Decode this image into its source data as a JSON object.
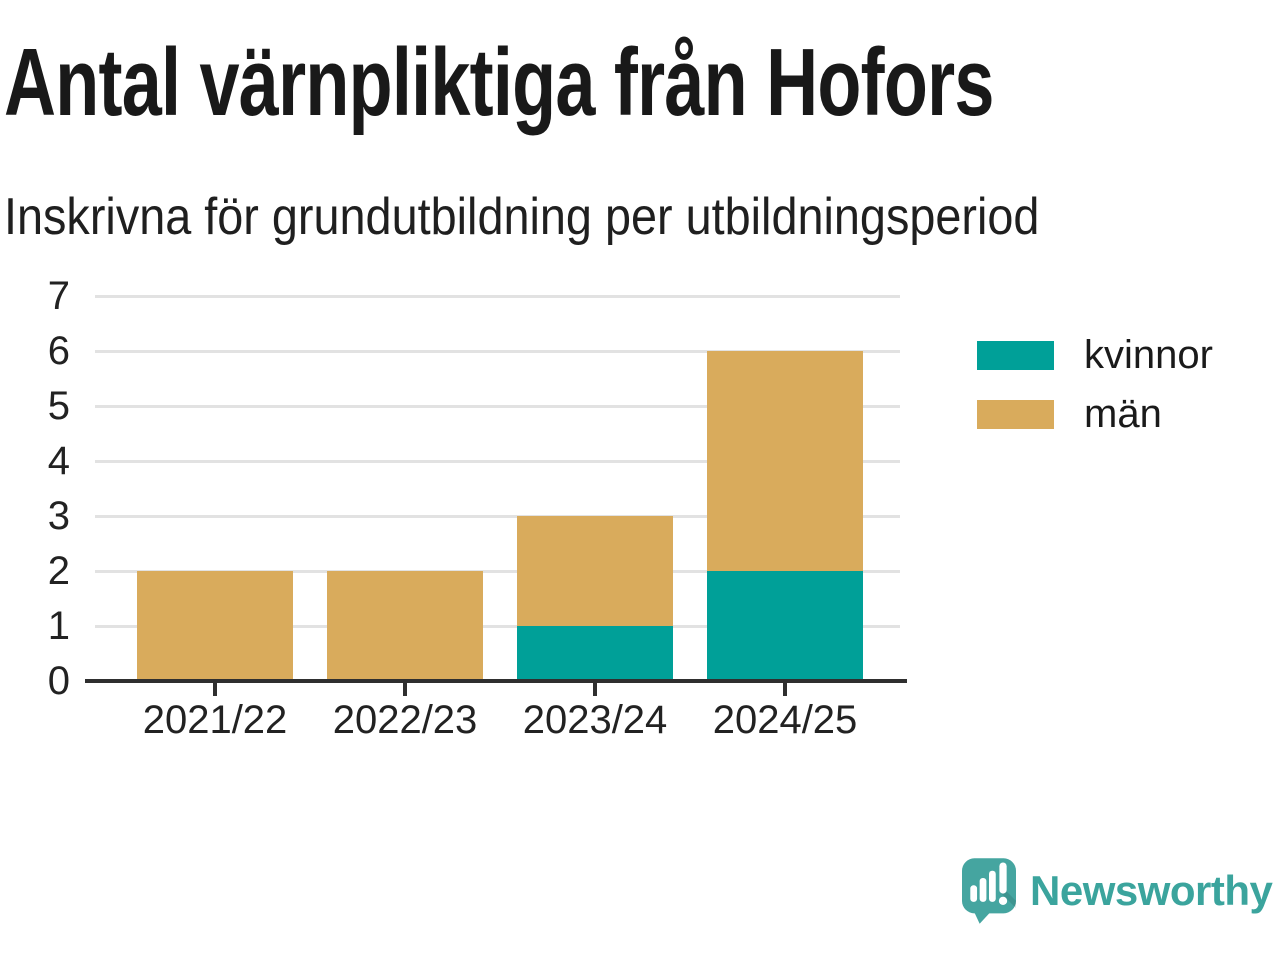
{
  "chart_data": {
    "type": "bar",
    "stacked": true,
    "title": "Antal värnpliktiga från Hofors",
    "subtitle": "Inskrivna för grundutbildning per utbildningsperiod",
    "categories": [
      "2021/22",
      "2022/23",
      "2023/24",
      "2024/25"
    ],
    "series": [
      {
        "name": "kvinnor",
        "color": "#00a098",
        "values": [
          0,
          0,
          1,
          2
        ]
      },
      {
        "name": "män",
        "color": "#d9ab5c",
        "values": [
          2,
          2,
          2,
          4
        ]
      }
    ],
    "stack_totals": [
      2,
      2,
      3,
      6
    ],
    "ylim": [
      0,
      7
    ],
    "yticks": [
      0,
      1,
      2,
      3,
      4,
      5,
      6,
      7
    ],
    "xlabel": "",
    "ylabel": "",
    "grid": "horizontal",
    "legend_position": "right"
  },
  "colors": {
    "axis": "#2f2f2f",
    "gridline": "#e2e2e2",
    "tick_text": "#222222",
    "title_text": "#191919"
  },
  "branding": {
    "logo_text": "Newsworthy",
    "logo_icon": "newsworthy-speech-bubble-bars-icon",
    "icon_color": "#45a5a0",
    "text_color": "#3ba49d"
  }
}
